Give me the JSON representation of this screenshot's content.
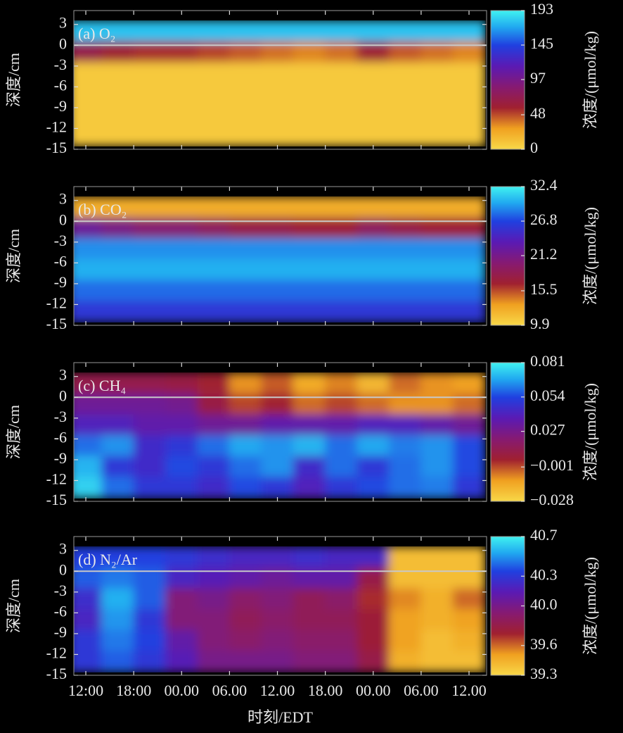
{
  "chart_data": [
    {
      "type": "heatmap",
      "title": "(a) O₂",
      "ylabel": "深度/cm",
      "colorbar_label": "浓度/(μmol/kg)",
      "xlim": [
        -1.5,
        50.2
      ],
      "xticks": [
        0,
        6,
        12,
        18,
        24,
        30,
        36,
        42,
        48
      ],
      "ylim": [
        -15,
        5
      ],
      "yticks": [
        3,
        0,
        -3,
        -6,
        -9,
        -12,
        -15
      ],
      "zlim": [
        0,
        193
      ],
      "zticks": [
        193,
        145,
        97,
        48,
        0
      ],
      "x": [
        0,
        4,
        8,
        12,
        16,
        20,
        24,
        28,
        32,
        36,
        40,
        44,
        48
      ],
      "y": [
        2,
        -1,
        -4,
        -7,
        -10,
        -13
      ],
      "z": [
        [
          178,
          178,
          178,
          178,
          178,
          178,
          178,
          178,
          178,
          178,
          178,
          178,
          178
        ],
        [
          70,
          60,
          55,
          55,
          50,
          45,
          40,
          35,
          40,
          60,
          45,
          40,
          35
        ],
        [
          8,
          8,
          8,
          8,
          8,
          8,
          8,
          8,
          8,
          8,
          8,
          8,
          8
        ],
        [
          8,
          8,
          8,
          8,
          8,
          8,
          8,
          8,
          8,
          8,
          8,
          8,
          8
        ],
        [
          8,
          8,
          8,
          8,
          8,
          8,
          8,
          8,
          8,
          8,
          8,
          8,
          8
        ],
        [
          8,
          8,
          8,
          8,
          8,
          8,
          8,
          8,
          8,
          8,
          8,
          8,
          8
        ]
      ]
    },
    {
      "type": "heatmap",
      "title": "(b) CO₂",
      "ylabel": "深度/cm",
      "colorbar_label": "浓度/(μmol/kg)",
      "xlim": [
        -1.5,
        50.2
      ],
      "xticks": [
        0,
        6,
        12,
        18,
        24,
        30,
        36,
        42,
        48
      ],
      "ylim": [
        -15,
        5
      ],
      "yticks": [
        3,
        0,
        -3,
        -6,
        -9,
        -12,
        -15
      ],
      "zlim": [
        9.9,
        32.4
      ],
      "zticks": [
        32.4,
        26.8,
        21.2,
        15.5,
        9.9
      ],
      "x": [
        0,
        4,
        8,
        12,
        16,
        20,
        24,
        28,
        32,
        36,
        40,
        44,
        48
      ],
      "y": [
        2,
        -1,
        -4,
        -7,
        -10,
        -13
      ],
      "z": [
        [
          12.5,
          12.5,
          12.5,
          12.5,
          12.5,
          12.5,
          12.5,
          12.5,
          12.5,
          12.5,
          12.5,
          12.5,
          12.5
        ],
        [
          22,
          21,
          20,
          20,
          19,
          18,
          18,
          17,
          17,
          19,
          18,
          17,
          17
        ],
        [
          29,
          29,
          29,
          29,
          29,
          29,
          29,
          29,
          29,
          29,
          29,
          29,
          29
        ],
        [
          30,
          30,
          30,
          30,
          30,
          30,
          30,
          30,
          30,
          30,
          30,
          30,
          30
        ],
        [
          28,
          28,
          28,
          28,
          28,
          28,
          28,
          28,
          28,
          28,
          28,
          28,
          28
        ],
        [
          26,
          26,
          26,
          26,
          26,
          26,
          26,
          26,
          26,
          26,
          26,
          26,
          26
        ]
      ]
    },
    {
      "type": "heatmap",
      "title": "(c) CH₄",
      "ylabel": "深度/cm",
      "colorbar_label": "浓度/(μmol/kg)",
      "xlim": [
        -1.5,
        50.2
      ],
      "xticks": [
        0,
        6,
        12,
        18,
        24,
        30,
        36,
        42,
        48
      ],
      "ylim": [
        -15,
        5
      ],
      "yticks": [
        3,
        0,
        -3,
        -6,
        -9,
        -12,
        -15
      ],
      "zlim": [
        -0.028,
        0.081
      ],
      "zticks": [
        0.081,
        0.054,
        0.027,
        {
          "value": -0.001,
          "label": "−0.001"
        },
        {
          "value": -0.028,
          "label": "−0.028"
        }
      ],
      "x": [
        0,
        4,
        8,
        12,
        16,
        20,
        24,
        28,
        32,
        36,
        40,
        44,
        48
      ],
      "y": [
        2,
        -1,
        -4,
        -7,
        -10,
        -13
      ],
      "z": [
        [
          0.012,
          0.012,
          0.012,
          0.01,
          0.005,
          -0.01,
          -0.003,
          -0.015,
          -0.008,
          -0.018,
          -0.005,
          -0.01,
          -0.012
        ],
        [
          0.03,
          0.03,
          0.03,
          0.028,
          0.01,
          0.0,
          0.005,
          -0.005,
          0.0,
          -0.005,
          -0.01,
          -0.01,
          -0.005
        ],
        [
          0.04,
          0.04,
          0.035,
          0.035,
          0.03,
          0.03,
          0.035,
          0.035,
          0.035,
          0.04,
          0.04,
          0.035,
          0.03
        ],
        [
          0.06,
          0.065,
          0.045,
          0.05,
          0.06,
          0.068,
          0.065,
          0.07,
          0.06,
          0.068,
          0.062,
          0.065,
          0.055
        ],
        [
          0.07,
          0.05,
          0.045,
          0.055,
          0.05,
          0.06,
          0.065,
          0.045,
          0.06,
          0.05,
          0.06,
          0.065,
          0.055
        ],
        [
          0.075,
          0.06,
          0.05,
          0.05,
          0.045,
          0.055,
          0.05,
          0.04,
          0.05,
          0.055,
          0.06,
          0.062,
          0.05
        ]
      ]
    },
    {
      "type": "heatmap",
      "title": "(d) N₂/Ar",
      "ylabel": "深度/cm",
      "colorbar_label": "浓度/(μmol/kg)",
      "xlabel": "时刻/EDT",
      "xlim": [
        -1.5,
        50.2
      ],
      "xticks": [
        {
          "value": 0,
          "label": "12:00"
        },
        {
          "value": 6,
          "label": "18:00"
        },
        {
          "value": 12,
          "label": "00.00"
        },
        {
          "value": 18,
          "label": "06.00"
        },
        {
          "value": 24,
          "label": "12.00"
        },
        {
          "value": 30,
          "label": "18.00"
        },
        {
          "value": 36,
          "label": "00.00"
        },
        {
          "value": 42,
          "label": "06.00"
        },
        {
          "value": 48,
          "label": "12.00"
        }
      ],
      "ylim": [
        -15,
        5
      ],
      "yticks": [
        3,
        0,
        -3,
        -6,
        -9,
        -12,
        -15
      ],
      "zlim": [
        39.3,
        40.7
      ],
      "zticks": [
        40.7,
        40.3,
        {
          "value": 40,
          "label": "40.0"
        },
        39.6,
        39.3
      ],
      "x": [
        0,
        4,
        8,
        12,
        16,
        20,
        24,
        28,
        32,
        36,
        40,
        44,
        48
      ],
      "y": [
        2,
        -1,
        -4,
        -7,
        -10,
        -13
      ],
      "z": [
        [
          40.35,
          40.35,
          40.35,
          40.3,
          40.25,
          40.2,
          40.2,
          40.25,
          40.2,
          40.2,
          39.4,
          39.4,
          39.4
        ],
        [
          40.4,
          40.45,
          40.4,
          40.2,
          40.15,
          40.1,
          40.05,
          40.1,
          40.1,
          39.8,
          39.4,
          39.4,
          39.4
        ],
        [
          40.25,
          40.55,
          40.4,
          39.95,
          40.0,
          39.9,
          39.95,
          39.85,
          39.9,
          39.7,
          39.55,
          39.45,
          39.6
        ],
        [
          40.2,
          40.5,
          40.3,
          39.95,
          39.95,
          39.85,
          39.9,
          39.85,
          39.85,
          39.75,
          39.5,
          39.45,
          39.5
        ],
        [
          40.3,
          40.45,
          40.35,
          40.1,
          39.95,
          39.9,
          39.95,
          39.9,
          39.9,
          39.75,
          39.5,
          39.4,
          39.45
        ],
        [
          40.3,
          40.4,
          40.3,
          40.15,
          40.0,
          40.0,
          40.0,
          39.95,
          39.95,
          39.8,
          39.45,
          39.4,
          39.4
        ]
      ]
    }
  ]
}
